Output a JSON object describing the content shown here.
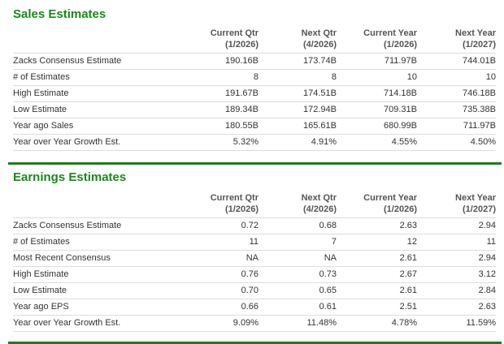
{
  "sales": {
    "title": "Sales Estimates",
    "columns": [
      {
        "name": "Current Qtr",
        "period": "(1/2026)"
      },
      {
        "name": "Next Qtr",
        "period": "(4/2026)"
      },
      {
        "name": "Current Year",
        "period": "(1/2026)"
      },
      {
        "name": "Next Year",
        "period": "(1/2027)"
      }
    ],
    "rows": [
      {
        "label": "Zacks Consensus Estimate",
        "values": [
          "190.16B",
          "173.74B",
          "711.97B",
          "744.01B"
        ]
      },
      {
        "label": "# of Estimates",
        "values": [
          "8",
          "8",
          "10",
          "10"
        ]
      },
      {
        "label": "High Estimate",
        "values": [
          "191.67B",
          "174.51B",
          "714.18B",
          "746.18B"
        ]
      },
      {
        "label": "Low Estimate",
        "values": [
          "189.34B",
          "172.94B",
          "709.31B",
          "735.38B"
        ]
      },
      {
        "label": "Year ago Sales",
        "values": [
          "180.55B",
          "165.61B",
          "680.99B",
          "711.97B"
        ]
      },
      {
        "label": "Year over Year Growth Est.",
        "values": [
          "5.32%",
          "4.91%",
          "4.55%",
          "4.50%"
        ]
      }
    ]
  },
  "earnings": {
    "title": "Earnings Estimates",
    "columns": [
      {
        "name": "Current Qtr",
        "period": "(1/2026)"
      },
      {
        "name": "Next Qtr",
        "period": "(4/2026)"
      },
      {
        "name": "Current Year",
        "period": "(1/2026)"
      },
      {
        "name": "Next Year",
        "period": "(1/2027)"
      }
    ],
    "rows": [
      {
        "label": "Zacks Consensus Estimate",
        "values": [
          "0.72",
          "0.68",
          "2.63",
          "2.94"
        ]
      },
      {
        "label": "# of Estimates",
        "values": [
          "11",
          "7",
          "12",
          "11"
        ]
      },
      {
        "label": "Most Recent Consensus",
        "values": [
          "NA",
          "NA",
          "2.61",
          "2.94"
        ]
      },
      {
        "label": "High Estimate",
        "values": [
          "0.76",
          "0.73",
          "2.67",
          "3.12"
        ]
      },
      {
        "label": "Low Estimate",
        "values": [
          "0.70",
          "0.65",
          "2.61",
          "2.84"
        ]
      },
      {
        "label": "Year ago EPS",
        "values": [
          "0.66",
          "0.61",
          "2.51",
          "2.63"
        ]
      },
      {
        "label": "Year over Year Growth Est.",
        "values": [
          "9.09%",
          "11.48%",
          "4.78%",
          "11.59%"
        ]
      }
    ]
  },
  "colors": {
    "accent": "#1a8a1a",
    "rule": "#187f18"
  }
}
